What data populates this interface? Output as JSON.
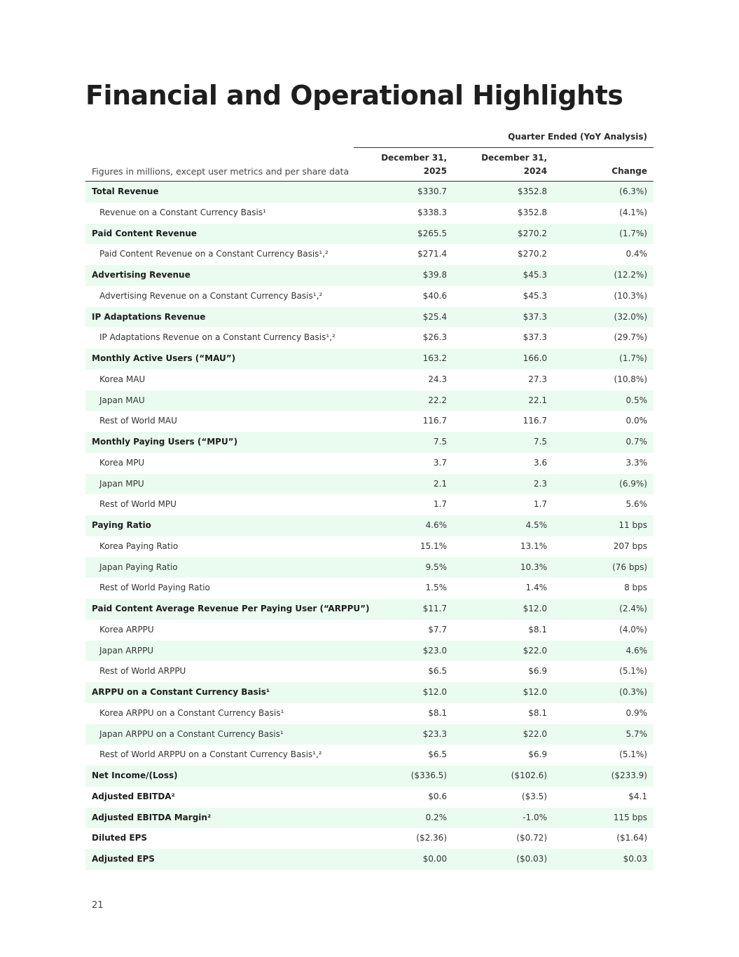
{
  "header": {
    "title": "Financial and Operational Highlights"
  },
  "table": {
    "group_header": "Quarter Ended (YoY Analysis)",
    "label_header": "Figures in millions, except user metrics and per share data",
    "columns": [
      [
        "December 31,",
        "2025"
      ],
      [
        "December 31,",
        "2024"
      ],
      [
        "Change"
      ]
    ],
    "rows": [
      {
        "label": "Total Revenue",
        "bold": true,
        "cells": [
          "$330.7",
          "$352.8",
          "(6.3%)"
        ]
      },
      {
        "label": "Revenue on a Constant Currency Basis¹",
        "bold": false,
        "cells": [
          "$338.3",
          "$352.8",
          "(4.1%)"
        ]
      },
      {
        "label": "Paid Content Revenue",
        "bold": true,
        "cells": [
          "$265.5",
          "$270.2",
          "(1.7%)"
        ]
      },
      {
        "label": "Paid Content Revenue on a Constant Currency Basis¹,²",
        "bold": false,
        "cells": [
          "$271.4",
          "$270.2",
          "0.4%"
        ]
      },
      {
        "label": "Advertising Revenue",
        "bold": true,
        "cells": [
          "$39.8",
          "$45.3",
          "(12.2%)"
        ]
      },
      {
        "label": "Advertising Revenue on a Constant Currency Basis¹,²",
        "bold": false,
        "cells": [
          "$40.6",
          "$45.3",
          "(10.3%)"
        ]
      },
      {
        "label": "IP Adaptations Revenue",
        "bold": true,
        "cells": [
          "$25.4",
          "$37.3",
          "(32.0%)"
        ]
      },
      {
        "label": "IP Adaptations Revenue on a Constant Currency Basis¹,²",
        "bold": false,
        "cells": [
          "$26.3",
          "$37.3",
          "(29.7%)"
        ]
      },
      {
        "label": "Monthly Active Users (“MAU”)",
        "bold": true,
        "cells": [
          "163.2",
          "166.0",
          "(1.7%)"
        ]
      },
      {
        "label": "Korea MAU",
        "bold": false,
        "cells": [
          "24.3",
          "27.3",
          "(10.8%)"
        ]
      },
      {
        "label": "Japan MAU",
        "bold": false,
        "cells": [
          "22.2",
          "22.1",
          "0.5%"
        ]
      },
      {
        "label": "Rest of World MAU",
        "bold": false,
        "cells": [
          "116.7",
          "116.7",
          "0.0%"
        ]
      },
      {
        "label": "Monthly Paying Users (“MPU”)",
        "bold": true,
        "cells": [
          "7.5",
          "7.5",
          "0.7%"
        ]
      },
      {
        "label": "Korea MPU",
        "bold": false,
        "cells": [
          "3.7",
          "3.6",
          "3.3%"
        ]
      },
      {
        "label": "Japan MPU",
        "bold": false,
        "cells": [
          "2.1",
          "2.3",
          "(6.9%)"
        ]
      },
      {
        "label": "Rest of World MPU",
        "bold": false,
        "cells": [
          "1.7",
          "1.7",
          "5.6%"
        ]
      },
      {
        "label": "Paying Ratio",
        "bold": true,
        "cells": [
          "4.6%",
          "4.5%",
          "11 bps"
        ]
      },
      {
        "label": "Korea Paying Ratio",
        "bold": false,
        "cells": [
          "15.1%",
          "13.1%",
          "207 bps"
        ]
      },
      {
        "label": "Japan Paying Ratio",
        "bold": false,
        "cells": [
          "9.5%",
          "10.3%",
          "(76 bps)"
        ]
      },
      {
        "label": "Rest of World Paying Ratio",
        "bold": false,
        "cells": [
          "1.5%",
          "1.4%",
          "8 bps"
        ]
      },
      {
        "label": "Paid Content Average Revenue Per Paying User (“ARPPU”)",
        "bold": true,
        "cells": [
          "$11.7",
          "$12.0",
          "(2.4%)"
        ]
      },
      {
        "label": "Korea ARPPU",
        "bold": false,
        "cells": [
          "$7.7",
          "$8.1",
          "(4.0%)"
        ]
      },
      {
        "label": "Japan ARPPU",
        "bold": false,
        "cells": [
          "$23.0",
          "$22.0",
          "4.6%"
        ]
      },
      {
        "label": "Rest of World ARPPU",
        "bold": false,
        "cells": [
          "$6.5",
          "$6.9",
          "(5.1%)"
        ]
      },
      {
        "label": "ARPPU on a Constant Currency Basis¹",
        "bold": true,
        "cells": [
          "$12.0",
          "$12.0",
          "(0.3%)"
        ]
      },
      {
        "label": "Korea ARPPU on a Constant Currency Basis¹",
        "bold": false,
        "cells": [
          "$8.1",
          "$8.1",
          "0.9%"
        ]
      },
      {
        "label": "Japan ARPPU on a Constant Currency Basis¹",
        "bold": false,
        "cells": [
          "$23.3",
          "$22.0",
          "5.7%"
        ]
      },
      {
        "label": "Rest of World ARPPU on a Constant Currency Basis¹,²",
        "bold": false,
        "cells": [
          "$6.5",
          "$6.9",
          "(5.1%)"
        ]
      },
      {
        "label": "Net Income/(Loss)",
        "bold": true,
        "cells": [
          "($336.5)",
          "($102.6)",
          "($233.9)"
        ]
      },
      {
        "label": "Adjusted EBITDA²",
        "bold": true,
        "cells": [
          "$0.6",
          "($3.5)",
          "$4.1"
        ]
      },
      {
        "label": "Adjusted EBITDA Margin²",
        "bold": true,
        "cells": [
          "0.2%",
          "-1.0%",
          "115 bps"
        ]
      },
      {
        "label": "Diluted EPS",
        "bold": true,
        "cells": [
          "($2.36)",
          "($0.72)",
          "($1.64)"
        ]
      },
      {
        "label": "Adjusted EPS",
        "bold": true,
        "cells": [
          "$0.00",
          "($0.03)",
          "$0.03"
        ]
      }
    ]
  },
  "footer": {
    "page_number": "21"
  }
}
